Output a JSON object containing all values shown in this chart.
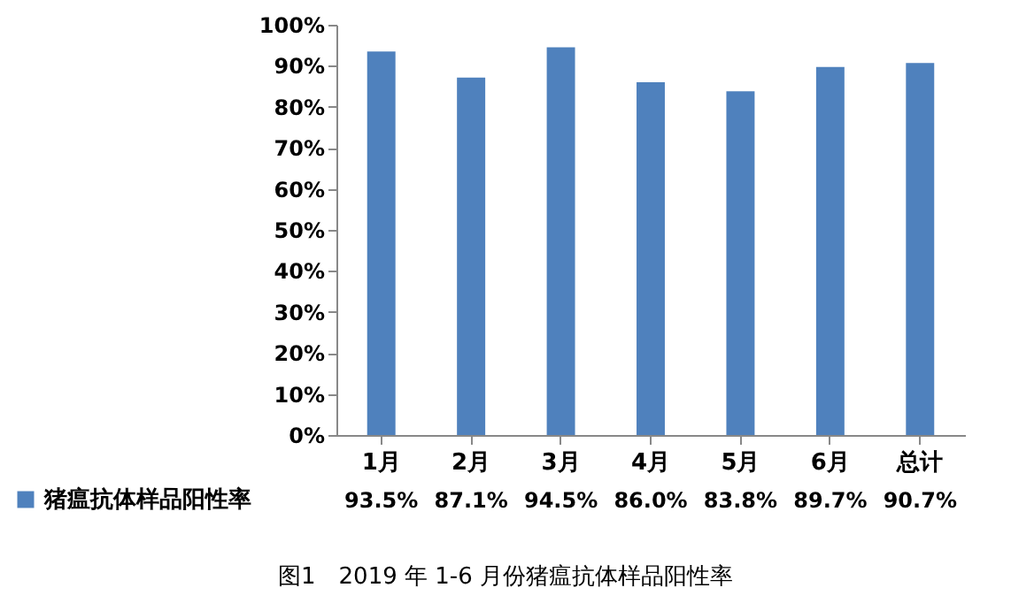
{
  "chart_data": {
    "type": "bar",
    "categories": [
      "1月",
      "2月",
      "3月",
      "4月",
      "5月",
      "6月",
      "总计"
    ],
    "series": [
      {
        "name": "猪瘟抗体样品阳性率",
        "color": "#4f81bd",
        "values": [
          93.5,
          87.1,
          94.5,
          86.0,
          83.8,
          89.7,
          90.7
        ],
        "value_labels": [
          "93.5%",
          "87.1%",
          "94.5%",
          "86.0%",
          "83.8%",
          "89.7%",
          "90.7%"
        ]
      }
    ],
    "ylim": [
      0,
      100
    ],
    "yticks": [
      {
        "value": 0,
        "label": "0%"
      },
      {
        "value": 10,
        "label": "10%"
      },
      {
        "value": 20,
        "label": "20%"
      },
      {
        "value": 30,
        "label": "30%"
      },
      {
        "value": 40,
        "label": "40%"
      },
      {
        "value": 50,
        "label": "50%"
      },
      {
        "value": 60,
        "label": "60%"
      },
      {
        "value": 70,
        "label": "70%"
      },
      {
        "value": 80,
        "label": "80%"
      },
      {
        "value": 90,
        "label": "90%"
      },
      {
        "value": 100,
        "label": "100%"
      }
    ],
    "grid": false,
    "legend": "bottom left",
    "annotations": [
      "图1　2019 年 1-6 月份猪瘟抗体样品阳性率"
    ]
  }
}
